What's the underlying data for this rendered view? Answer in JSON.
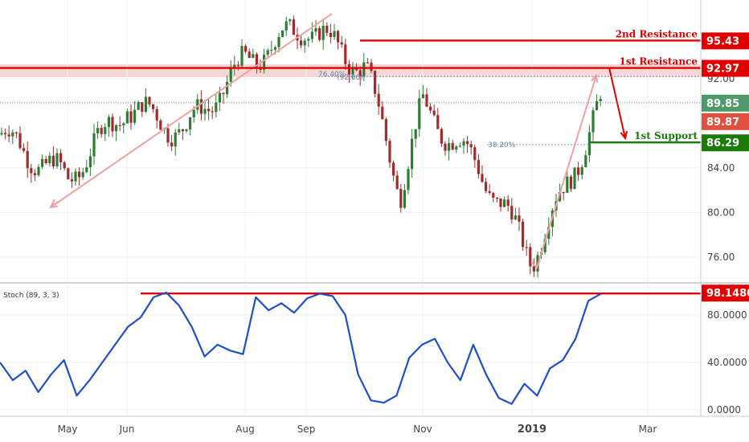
{
  "chart_data": [
    {
      "type": "candlestick",
      "x_axis": {
        "ticks": [
          "May",
          "Jun",
          "Aug",
          "Sep",
          "Nov",
          "2019",
          "Mar"
        ],
        "bold_tick": "2019"
      },
      "y_axis": {
        "ticks": [
          "76.00",
          "80.00",
          "84.00",
          "92.00"
        ],
        "range": [
          74,
          98
        ]
      },
      "approx_close_path": [
        [
          "start",
          87.0
        ],
        [
          "May",
          83.0
        ],
        [
          "Jun",
          89.5
        ],
        [
          "Jul",
          87.3
        ],
        [
          "Aug",
          93.5
        ],
        [
          "Sep",
          96.8
        ],
        [
          "Oct",
          92.9
        ],
        [
          "Oct late",
          82.0
        ],
        [
          "Nov",
          89.5
        ],
        [
          "Dec",
          84.0
        ],
        [
          "2019",
          76.0
        ],
        [
          "Jan",
          81.5
        ],
        [
          "Feb",
          89.85
        ]
      ],
      "levels": [
        {
          "label": "2nd Resistance",
          "value": 95.43,
          "tag": "95.43",
          "color": "#e00000"
        },
        {
          "label": "1st Resistance",
          "value": 92.97,
          "tag": "92.97",
          "color": "#e00000"
        },
        {
          "label": "1st Support",
          "value": 86.29,
          "tag": "86.29",
          "color": "#1a7a0a"
        }
      ],
      "price_tags": [
        {
          "value": 89.85,
          "tag": "89.85",
          "color": "#4e9a6a"
        },
        {
          "value": 89.87,
          "tag": "89.87",
          "color": "#e05040"
        }
      ],
      "fib_annotations": {
        "fib_764_label": "76.40%",
        "fib_764_value_label": "(92.00)",
        "fib_382_label": "38.20%"
      }
    },
    {
      "type": "line",
      "title": "Stoch (89, 3, 3)",
      "y_axis": {
        "ticks": [
          "0.0000",
          "40.0000",
          "80.0000"
        ],
        "range": [
          0,
          100
        ]
      },
      "series": [
        {
          "color": "#1f4fc8",
          "values": [
            40,
            25,
            33,
            15,
            30,
            42,
            12,
            25,
            40,
            55,
            70,
            78,
            95,
            99,
            88,
            70,
            45,
            55,
            50,
            47,
            95,
            84,
            90,
            82,
            94,
            98,
            96,
            80,
            30,
            8,
            6,
            12,
            44,
            55,
            60,
            40,
            25,
            55,
            30,
            10,
            5,
            22,
            12,
            35,
            42,
            60,
            92,
            98
          ]
        }
      ],
      "level": {
        "value": 98.148,
        "tag": "98.1480",
        "color": "#e00000"
      }
    }
  ]
}
